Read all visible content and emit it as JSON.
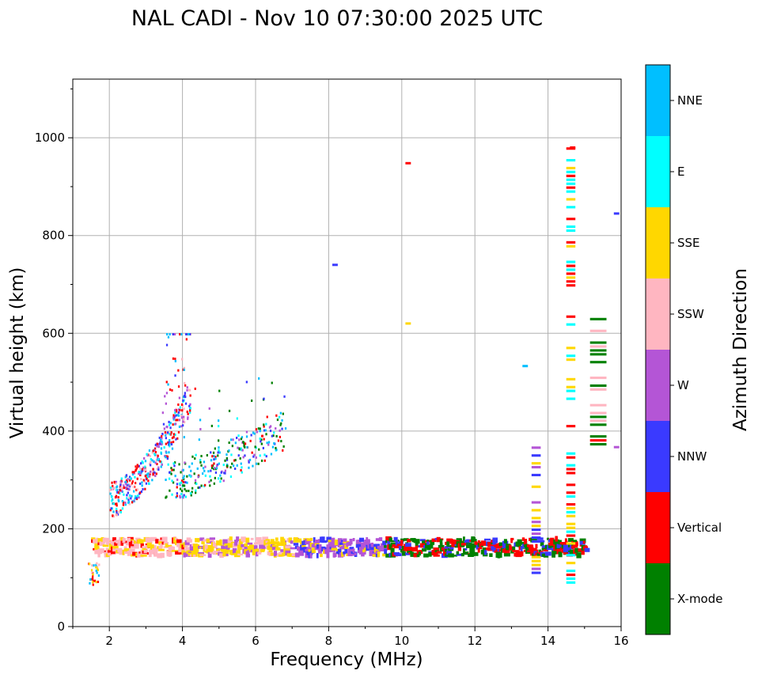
{
  "chart_data": {
    "type": "scatter",
    "title": "NAL CADI - Nov 10 07:30:00 2025 UTC",
    "xlabel": "Frequency (MHz)",
    "ylabel": "Virtual height (km)",
    "xlim": [
      1,
      16
    ],
    "ylim": [
      0,
      1120
    ],
    "xticks": [
      "2",
      "4",
      "6",
      "8",
      "10",
      "12",
      "14",
      "16"
    ],
    "yticks": [
      "0",
      "200",
      "400",
      "600",
      "800",
      "1000"
    ],
    "grid": true,
    "colorbar": {
      "label": "Azimuth Direction",
      "categories": [
        {
          "name": "X-mode",
          "color": "#008000"
        },
        {
          "name": "Vertical",
          "color": "#ff0000"
        },
        {
          "name": "NNW",
          "color": "#3a3aff"
        },
        {
          "name": "W",
          "color": "#b455d6"
        },
        {
          "name": "SSW",
          "color": "#ffb6c1"
        },
        {
          "name": "SSE",
          "color": "#ffd700"
        },
        {
          "name": "E",
          "color": "#00ffff"
        },
        {
          "name": "NNE",
          "color": "#00bfff"
        }
      ]
    },
    "series": [
      {
        "name": "E-layer trace (150-175 km)",
        "x_range": [
          1.5,
          15.0
        ],
        "height_range": [
          145,
          180
        ],
        "dominant": [
          "SSW",
          "SSE",
          "W",
          "NNW",
          "X-mode",
          "Vertical"
        ]
      },
      {
        "name": "Low echoes (90-130 km)",
        "x_range": [
          1.4,
          1.7
        ],
        "height_range": [
          85,
          130
        ],
        "dominant": [
          "SSE",
          "Vertical"
        ]
      },
      {
        "name": "F-layer ordinary trace",
        "x_range": [
          2.0,
          4.2
        ],
        "height_range": [
          235,
          600
        ],
        "dominant": [
          "Vertical",
          "E",
          "NNE",
          "SSW"
        ]
      },
      {
        "name": "F-layer X-mode trace",
        "x_range": [
          3.5,
          6.8
        ],
        "height_range": [
          270,
          520
        ],
        "dominant": [
          "X-mode",
          "NNW",
          "NNE"
        ]
      },
      {
        "name": "Interference column 13.6 MHz",
        "x_range": [
          13.55,
          13.8
        ],
        "height_range": [
          110,
          370
        ],
        "dominant": [
          "SSE",
          "NNW",
          "W"
        ]
      },
      {
        "name": "Interference column 14.6 MHz",
        "x_range": [
          14.5,
          14.75
        ],
        "height_range": [
          90,
          980
        ],
        "dominant": [
          "SSE",
          "Vertical",
          "E"
        ]
      },
      {
        "name": "Interference column 15.3 MHz",
        "x_range": [
          15.15,
          15.6
        ],
        "height_range": [
          365,
          635
        ],
        "dominant": [
          "Vertical",
          "X-mode",
          "SSW"
        ]
      },
      {
        "name": "Isolated echoes",
        "points": [
          {
            "x": 10.1,
            "y": 948,
            "dir": "Vertical"
          },
          {
            "x": 10.1,
            "y": 620,
            "dir": "SSE"
          },
          {
            "x": 8.1,
            "y": 740,
            "dir": "NNW"
          },
          {
            "x": 13.3,
            "y": 533,
            "dir": "NNE"
          },
          {
            "x": 14.6,
            "y": 980,
            "dir": "Vertical"
          },
          {
            "x": 15.8,
            "y": 845,
            "dir": "NNW"
          },
          {
            "x": 15.8,
            "y": 367,
            "dir": "W"
          }
        ]
      }
    ]
  }
}
